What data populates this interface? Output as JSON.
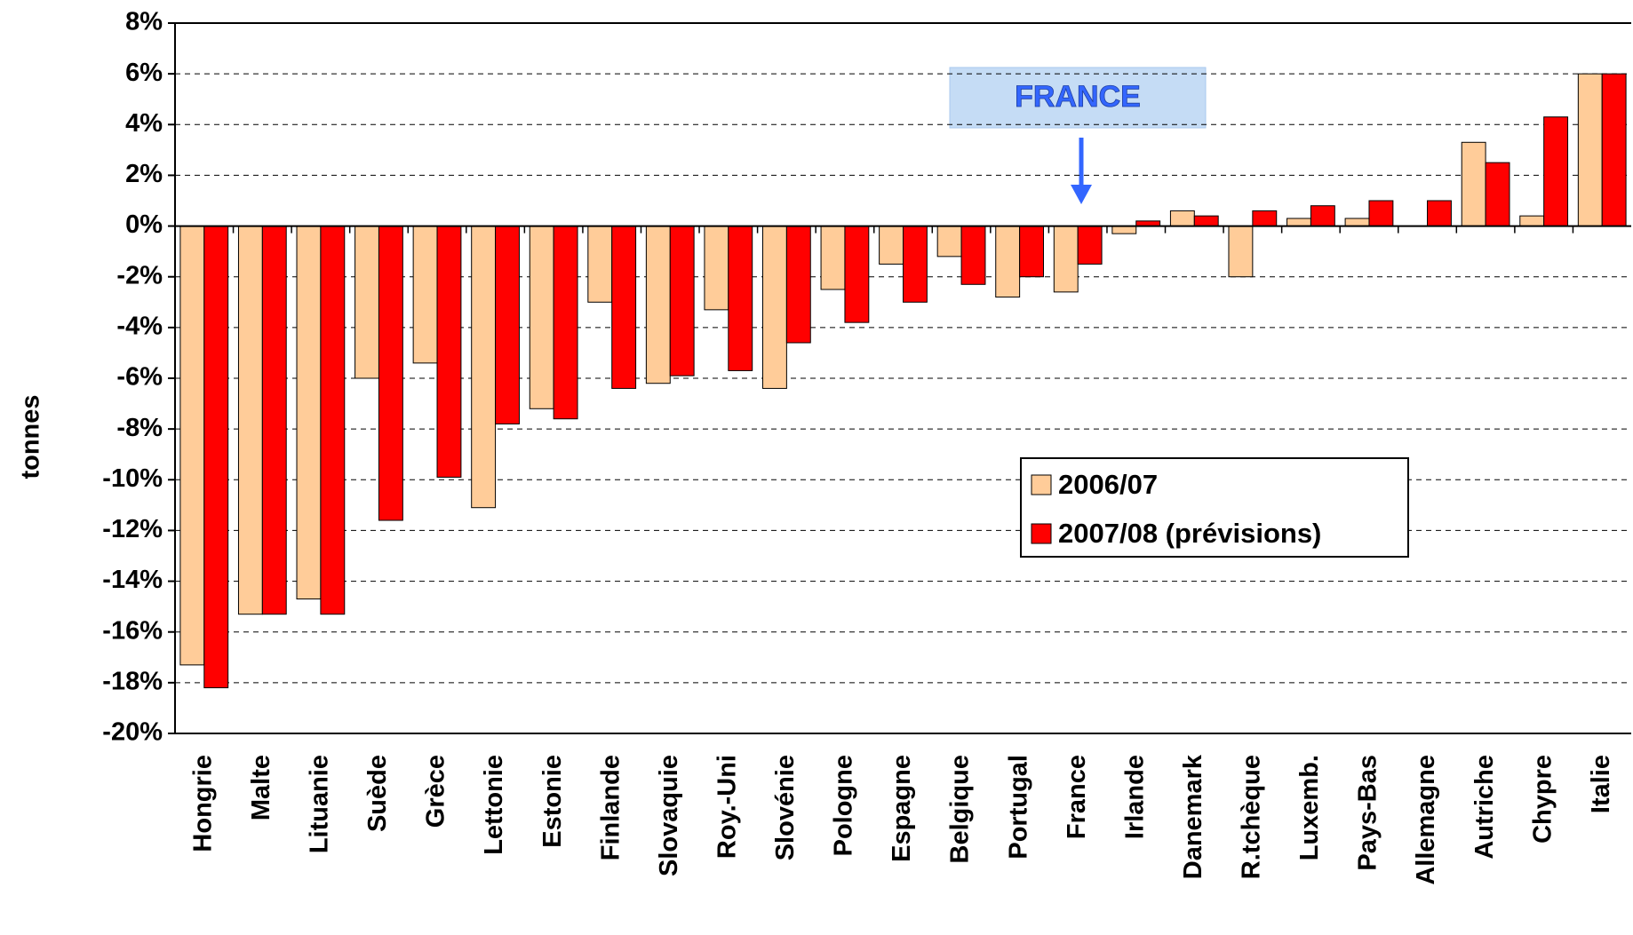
{
  "chart_data": {
    "type": "bar",
    "ylabel": "tonnes",
    "annotation": "FRANCE",
    "categories": [
      "Hongrie",
      "Malte",
      "Lituanie",
      "Suède",
      "Grèce",
      "Lettonie",
      "Estonie",
      "Finlande",
      "Slovaquie",
      "Roy.-Uni",
      "Slovénie",
      "Pologne",
      "Espagne",
      "Belgique",
      "Portugal",
      "France",
      "Irlande",
      "Danemark",
      "R.tchèque",
      "Luxemb.",
      "Pays-Bas",
      "Allemagne",
      "Autriche",
      "Chypre",
      "Italie"
    ],
    "series": [
      {
        "name": "2006/07",
        "color": "#ffcc99",
        "values": [
          -17.3,
          -15.3,
          -14.7,
          -6.0,
          -5.4,
          -11.1,
          -7.2,
          -3.0,
          -6.2,
          -3.3,
          -6.4,
          -2.5,
          -1.5,
          -1.2,
          -2.8,
          -2.6,
          -0.3,
          0.6,
          -2.0,
          0.3,
          0.3,
          0,
          3.3,
          0.4,
          6.0
        ]
      },
      {
        "name": "2007/08 (prévisions)",
        "color": "#ff0000",
        "values": [
          -18.2,
          -15.3,
          -15.3,
          -11.6,
          -9.9,
          -7.8,
          -7.6,
          -6.4,
          -5.9,
          -5.7,
          -4.6,
          -3.8,
          -3.0,
          -2.3,
          -2.0,
          -1.5,
          0.2,
          0.4,
          0.6,
          0.8,
          1.0,
          1.0,
          2.5,
          4.3,
          6.0
        ]
      }
    ],
    "ylim": [
      -20,
      8
    ],
    "yticks": [
      {
        "value": -20,
        "label": "-20%"
      },
      {
        "value": -18,
        "label": "-18%"
      },
      {
        "value": -16,
        "label": "-16%"
      },
      {
        "value": -14,
        "label": "-14%"
      },
      {
        "value": -12,
        "label": "-12%"
      },
      {
        "value": -10,
        "label": "-10%"
      },
      {
        "value": -8,
        "label": "-8%"
      },
      {
        "value": -6,
        "label": "-6%"
      },
      {
        "value": -4,
        "label": "-4%"
      },
      {
        "value": -2,
        "label": "-2%"
      },
      {
        "value": 0,
        "label": "0%"
      },
      {
        "value": 2,
        "label": "2%"
      },
      {
        "value": 4,
        "label": "4%"
      },
      {
        "value": 6,
        "label": "6%"
      },
      {
        "value": 8,
        "label": "8%"
      }
    ],
    "grid": true
  }
}
